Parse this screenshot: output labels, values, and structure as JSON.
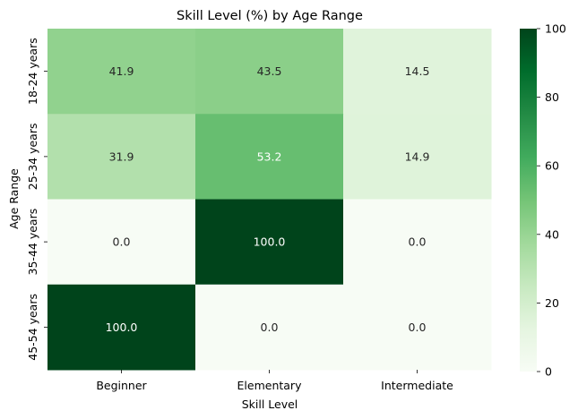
{
  "chart_data": {
    "type": "heatmap",
    "title": "Skill Level (%) by Age Range",
    "xlabel": "Skill Level",
    "ylabel": "Age Range",
    "x_categories": [
      "Beginner",
      "Elementary",
      "Intermediate"
    ],
    "y_categories": [
      "18-24 years",
      "25-34 years",
      "35-44 years",
      "45-54 years"
    ],
    "values": [
      [
        41.9,
        43.5,
        14.5
      ],
      [
        31.9,
        53.2,
        14.9
      ],
      [
        0.0,
        100.0,
        0.0
      ],
      [
        100.0,
        0.0,
        0.0
      ]
    ],
    "value_format": "0.1f",
    "colormap": "Greens",
    "colorbar": {
      "min": 0,
      "max": 100,
      "ticks": [
        0,
        20,
        40,
        60,
        80,
        100
      ]
    }
  }
}
